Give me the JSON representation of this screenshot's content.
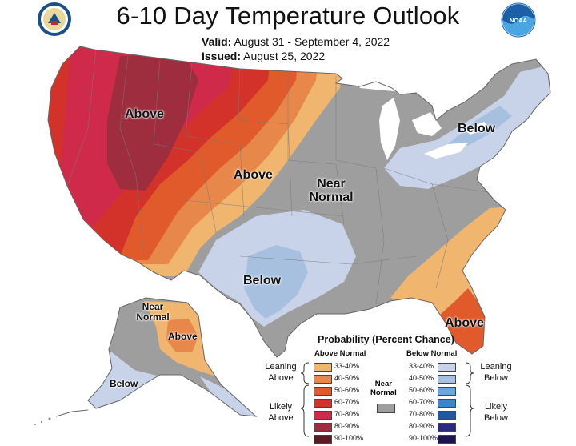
{
  "title": "6-10 Day Temperature Outlook",
  "valid_label": "Valid:",
  "valid_value": "August 31 - September 4, 2022",
  "issued_label": "Issued:",
  "issued_value": "August 25, 2022",
  "logo_noaa_text": "NOAA",
  "region_labels": {
    "west_above": "Above",
    "plains_above": "Above",
    "near_normal_line1": "Near",
    "near_normal_line2": "Normal",
    "northeast_below": "Below",
    "texas_below": "Below",
    "florida_above": "Above",
    "alaska_near_line1": "Near",
    "alaska_near_line2": "Normal",
    "alaska_above": "Above",
    "alaska_below": "Below"
  },
  "legend": {
    "title": "Probability (Percent Chance)",
    "above_header": "Above Normal",
    "below_header": "Below Normal",
    "leaning_above": [
      "Leaning",
      "Above"
    ],
    "likely_above": [
      "Likely",
      "Above"
    ],
    "leaning_below": [
      "Leaning",
      "Below"
    ],
    "likely_below": [
      "Likely",
      "Below"
    ],
    "near_normal": [
      "Near",
      "Normal"
    ],
    "near_normal_color": "#9e9e9e",
    "above_items": [
      {
        "range": "33-40%",
        "color": "#f0b56e"
      },
      {
        "range": "40-50%",
        "color": "#e8874a"
      },
      {
        "range": "50-60%",
        "color": "#e05a2b"
      },
      {
        "range": "60-70%",
        "color": "#d2322a"
      },
      {
        "range": "70-80%",
        "color": "#d02a4a"
      },
      {
        "range": "80-90%",
        "color": "#9e2d3e"
      },
      {
        "range": "90-100%",
        "color": "#5c1a22"
      }
    ],
    "below_items": [
      {
        "range": "33-40%",
        "color": "#c8d3ea"
      },
      {
        "range": "40-50%",
        "color": "#a8c0e0"
      },
      {
        "range": "50-60%",
        "color": "#6aa6dc"
      },
      {
        "range": "60-70%",
        "color": "#3a86c8"
      },
      {
        "range": "70-80%",
        "color": "#1f5a9e"
      },
      {
        "range": "80-90%",
        "color": "#2a2a7c"
      },
      {
        "range": "90-100%",
        "color": "#1c1450"
      }
    ]
  },
  "colors": {
    "near_normal": "#9e9e9e",
    "above_33_40": "#f0b56e",
    "above_40_50": "#e8874a",
    "above_50_60": "#e05a2b",
    "above_60_70": "#d2322a",
    "above_70_80": "#d02a4a",
    "above_80_90": "#9e2d3e",
    "below_33_40": "#c8d3ea",
    "below_40_50": "#a8c0e0",
    "noaa_blue": "#1a5fa8",
    "noaa_light": "#4aa6e0"
  }
}
